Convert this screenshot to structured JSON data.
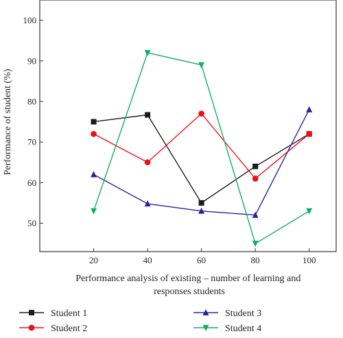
{
  "chart_data": {
    "type": "line",
    "title": "",
    "xlabel": "Performance analysis of existing – number of learning and responses students",
    "xlabel_lines": [
      "Performance analysis of existing – number of learning and",
      "responses students"
    ],
    "ylabel": "Performance of student (%)",
    "x": [
      20,
      40,
      60,
      80,
      100
    ],
    "xlim": [
      0,
      110
    ],
    "ylim": [
      43,
      105
    ],
    "xticks": [
      20,
      40,
      60,
      80,
      100
    ],
    "yticks": [
      50,
      60,
      70,
      80,
      90,
      100
    ],
    "grid": false,
    "legend_position": "bottom",
    "series": [
      {
        "name": "Student 1",
        "color": "#1a1a1a",
        "marker": "square",
        "values": [
          75,
          76.7,
          55,
          64,
          72
        ]
      },
      {
        "name": "Student 2",
        "color": "#e8141c",
        "marker": "circle",
        "values": [
          72,
          65,
          77,
          61,
          72
        ]
      },
      {
        "name": "Student 3",
        "color": "#25239a",
        "marker": "triangle-up",
        "values": [
          62,
          54.8,
          53,
          52,
          78
        ]
      },
      {
        "name": "Student 4",
        "color": "#10b060",
        "marker": "triangle-down",
        "values": [
          53,
          92,
          89,
          45,
          53
        ]
      }
    ]
  }
}
